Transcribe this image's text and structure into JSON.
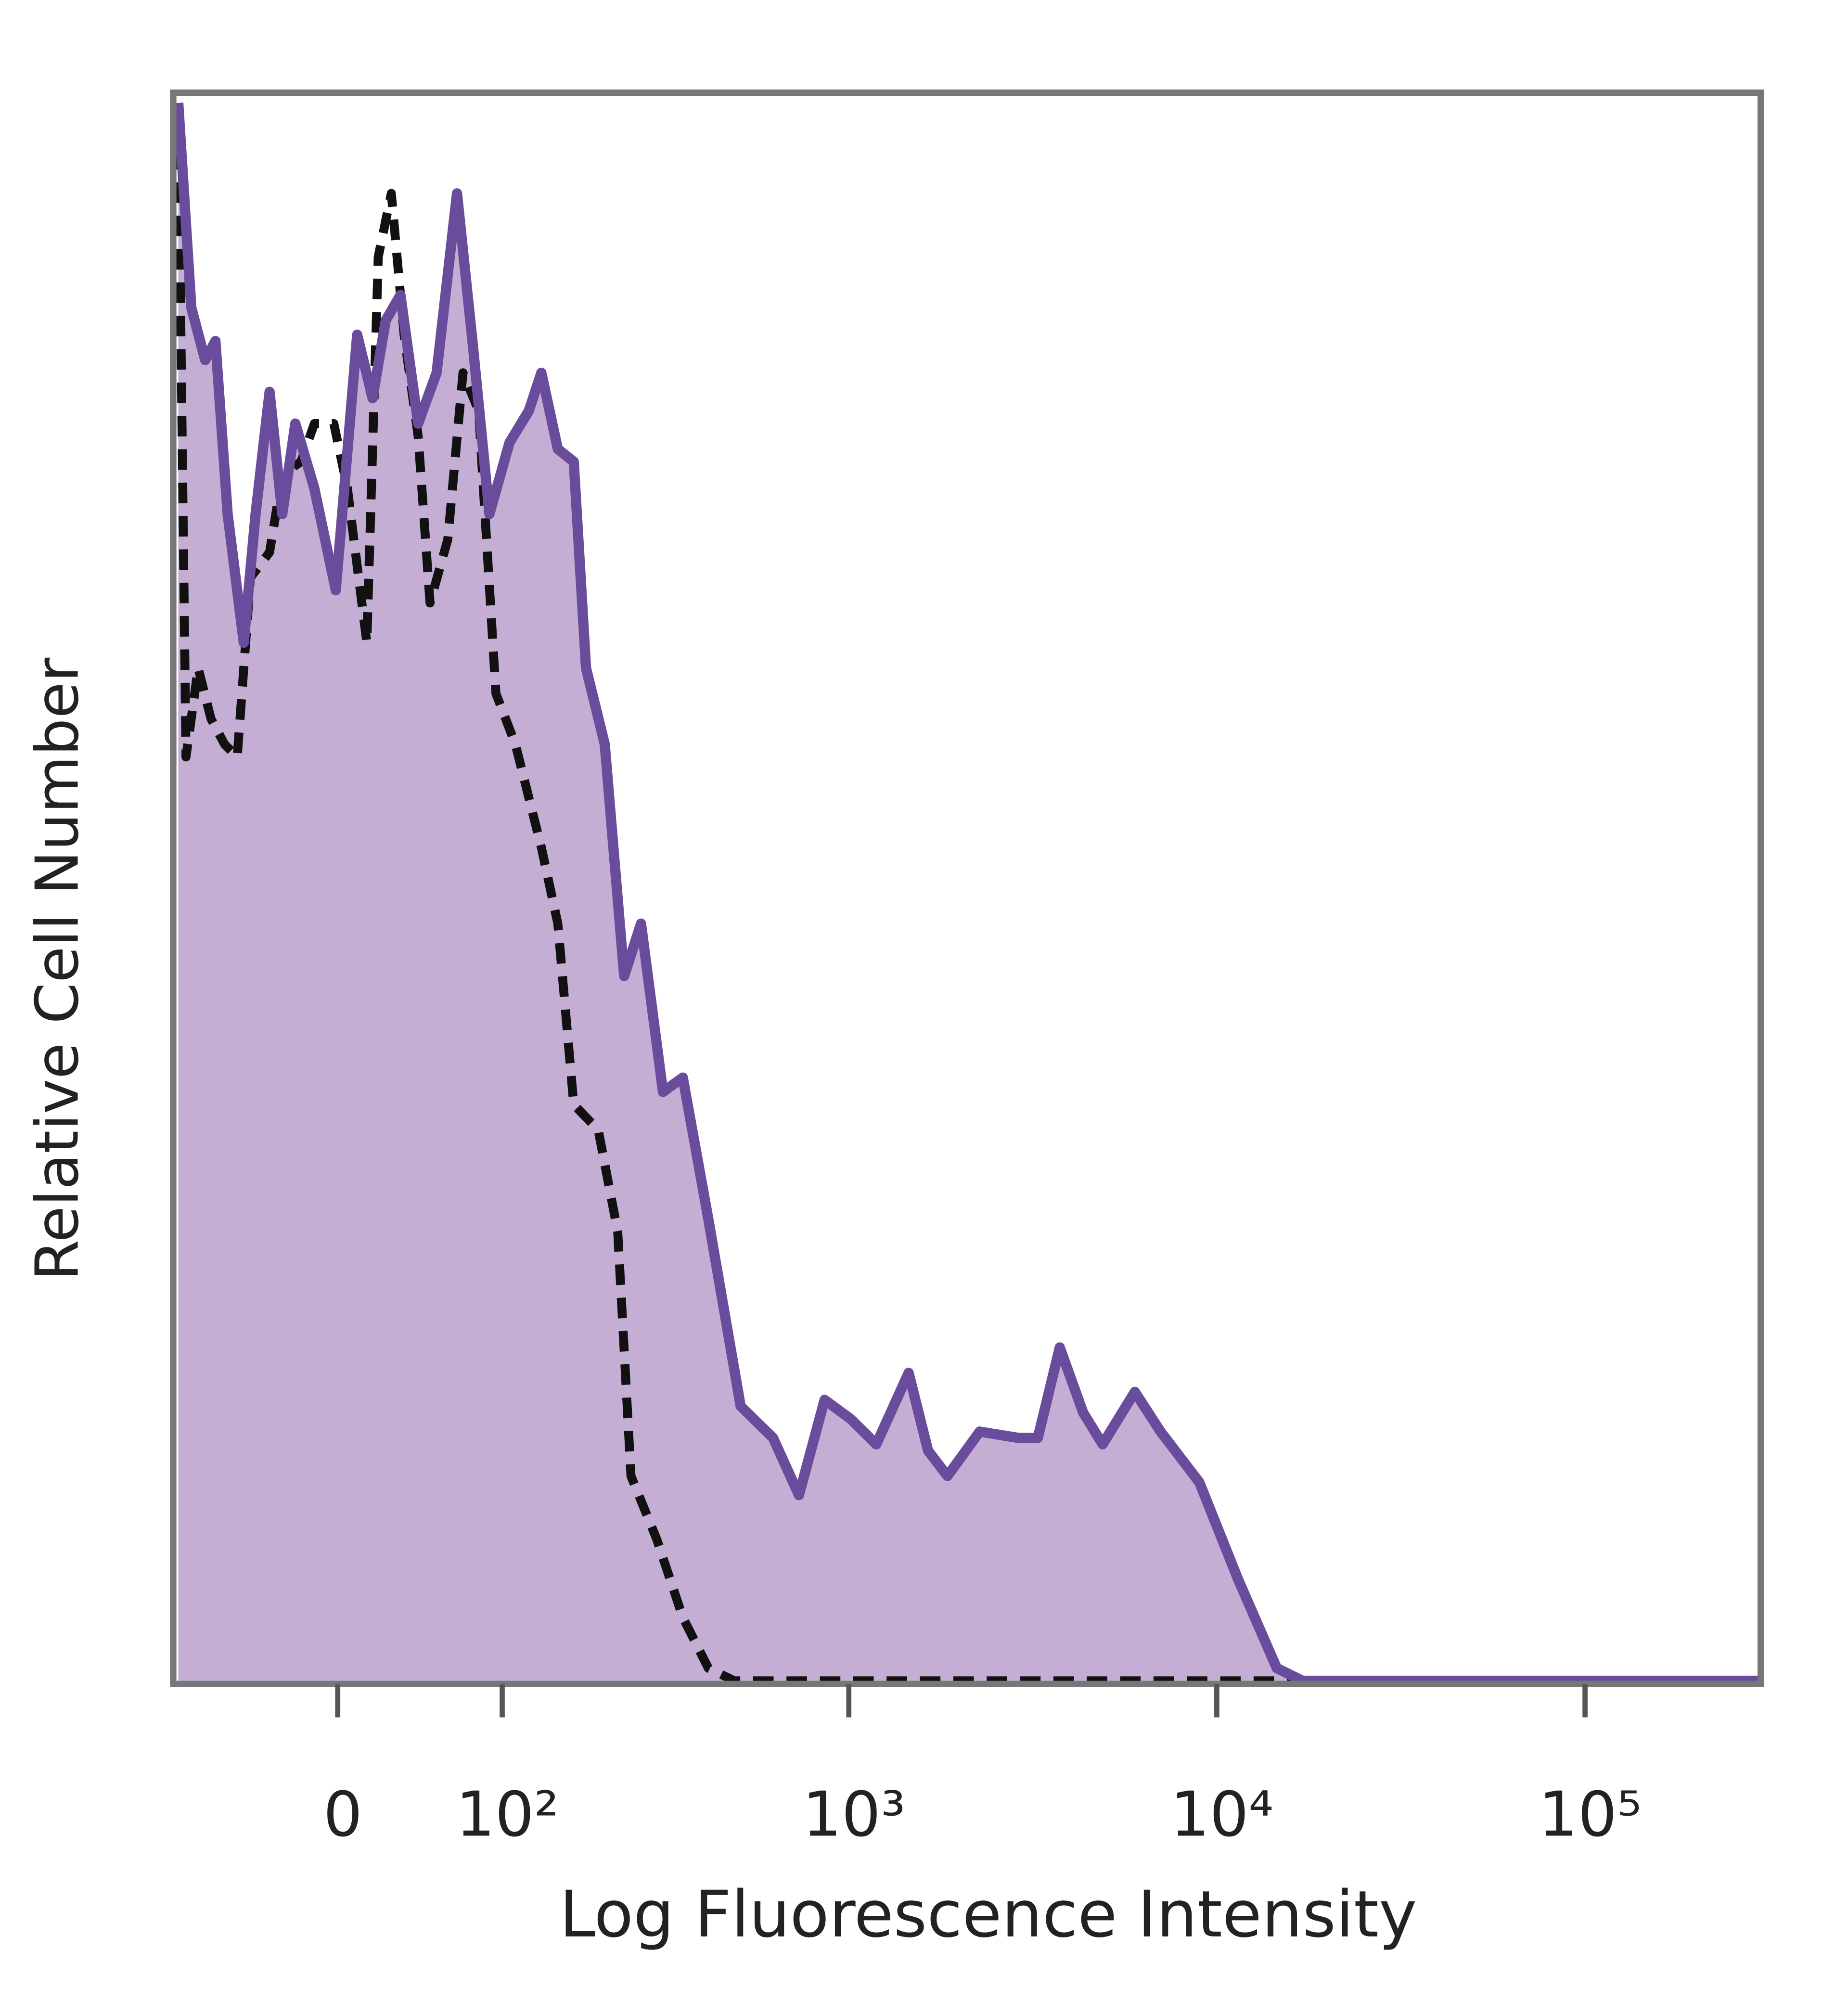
{
  "chart_data": {
    "type": "histogram-line",
    "x_label": "Log Fluorescence Intensity",
    "y_label": "Relative Cell Number",
    "xscale": "biexponential",
    "xlim": [
      -100,
      300000
    ],
    "ylim": [
      0,
      100
    ],
    "xticks": [
      0,
      {
        "value": 100,
        "label": "10²"
      },
      {
        "value": 1000,
        "label": "10³"
      },
      {
        "value": 10000,
        "label": "10⁴"
      },
      {
        "value": 100000,
        "label": "10⁵"
      }
    ],
    "series": [
      {
        "color": "#6a4c9c",
        "fill": "#c4aed4",
        "dashed": false,
        "x": [
          -96,
          -86,
          -76,
          -69,
          -61,
          -51,
          -44,
          -36,
          -29,
          -22,
          -12,
          -1,
          10,
          18,
          25,
          33,
          43,
          54,
          67,
          78,
          90,
          106,
          123,
          135,
          152,
          170,
          185,
          210,
          239,
          267,
          308,
          350,
          412,
          506,
          621,
          731,
          859,
          1011,
          1188,
          1455,
          1643,
          1855,
          2270,
          2894,
          3265,
          3745,
          4335,
          4896,
          5990,
          7036,
          8968,
          11420,
          14550,
          17100,
          300000
        ],
        "values": [
          99.6,
          86.7,
          83.4,
          84.6,
          73.7,
          65.6,
          73.7,
          81.4,
          73.7,
          79.4,
          75.3,
          68.9,
          85.0,
          81.0,
          85.9,
          87.5,
          79.4,
          82.6,
          93.9,
          84.2,
          73.7,
          78.2,
          80.2,
          82.6,
          77.8,
          77.0,
          64.0,
          59.2,
          44.6,
          47.9,
          37.3,
          38.2,
          29.3,
          17.5,
          15.5,
          11.9,
          17.9,
          16.7,
          15.1,
          19.6,
          14.7,
          13.1,
          15.9,
          15.5,
          15.5,
          21.2,
          17.1,
          15.1,
          18.4,
          15.9,
          12.7,
          6.6,
          1.0,
          0.2,
          0.2
        ]
      },
      {
        "color": "#111111",
        "dashed": true,
        "x": [
          -96,
          -90,
          -81,
          -72,
          -63,
          -55,
          -47,
          -36,
          -29,
          -19,
          -12,
          -2,
          5,
          15,
          21,
          28,
          35,
          43,
          50,
          61,
          71,
          82,
          95,
          111,
          135,
          152,
          170,
          201,
          229,
          250,
          296,
          350,
          412,
          486,
          300000
        ],
        "values": [
          98.8,
          58.4,
          64.0,
          60.8,
          59.2,
          58.4,
          69.7,
          71.3,
          76.2,
          77.0,
          79.4,
          79.4,
          75.3,
          65.6,
          89.9,
          93.9,
          85.0,
          78.6,
          68.1,
          72.1,
          82.6,
          80.2,
          62.4,
          59.2,
          52.7,
          47.9,
          36.5,
          34.9,
          28.5,
          13.1,
          9.1,
          4.2,
          1.0,
          0.2,
          0.2
        ]
      }
    ]
  }
}
